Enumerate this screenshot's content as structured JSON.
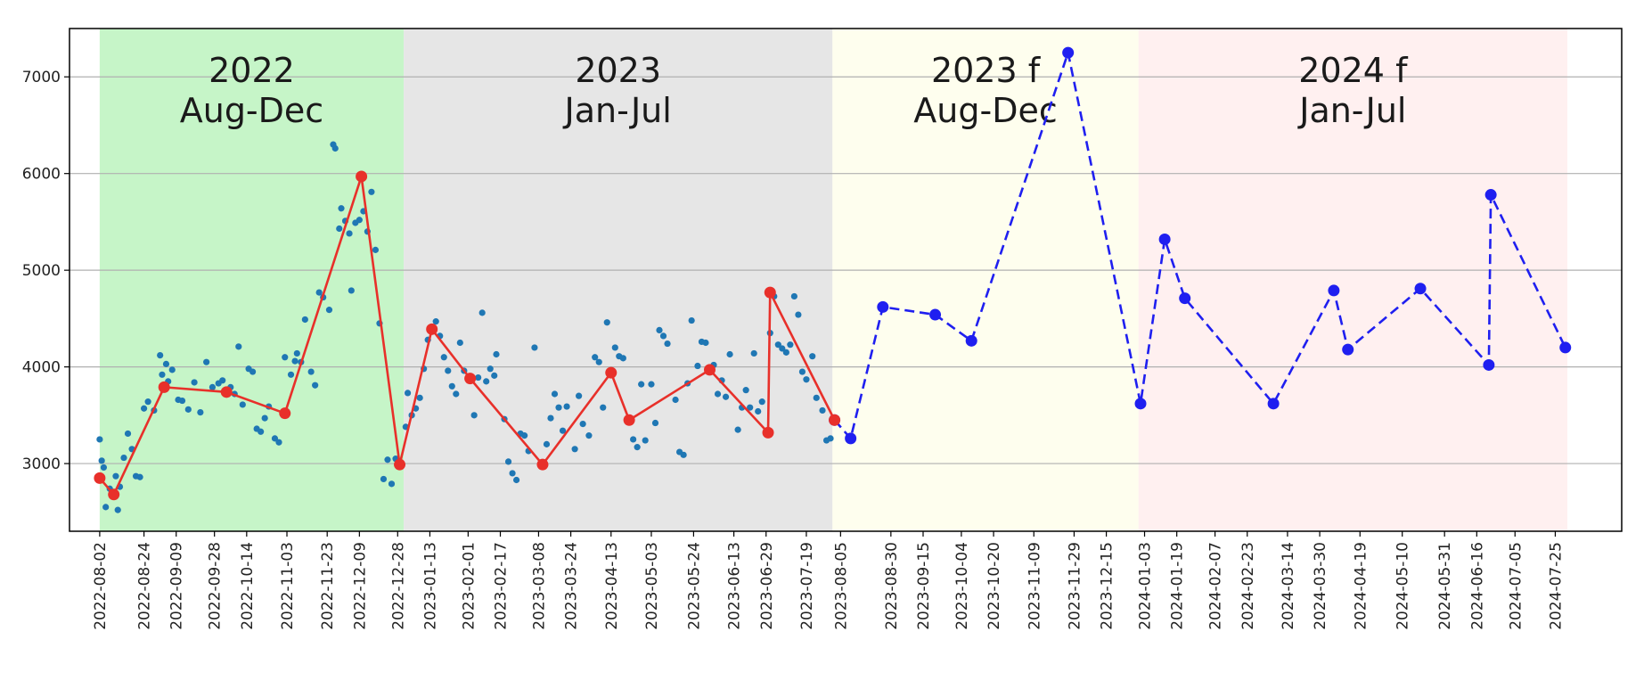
{
  "chart_data": {
    "type": "line",
    "title": "",
    "xlabel": "",
    "ylabel": "",
    "ylim": [
      2300,
      7500
    ],
    "xlim": [
      "2022-07-18",
      "2024-08-27"
    ],
    "y_ticks": [
      3000,
      4000,
      5000,
      6000,
      7000
    ],
    "x_ticks": [
      "2022-08-02",
      "2022-08-24",
      "2022-09-09",
      "2022-09-28",
      "2022-10-14",
      "2022-11-03",
      "2022-11-23",
      "2022-12-09",
      "2022-12-28",
      "2023-01-13",
      "2023-02-01",
      "2023-02-17",
      "2023-03-08",
      "2023-03-24",
      "2023-04-13",
      "2023-05-03",
      "2023-05-24",
      "2023-06-13",
      "2023-06-29",
      "2023-07-19",
      "2023-08-05",
      "2023-08-30",
      "2023-09-15",
      "2023-10-04",
      "2023-10-20",
      "2023-11-09",
      "2023-11-29",
      "2023-12-15",
      "2024-01-03",
      "2024-01-19",
      "2024-02-07",
      "2024-02-23",
      "2024-03-14",
      "2024-03-30",
      "2024-04-19",
      "2024-05-10",
      "2024-05-31",
      "2024-06-16",
      "2024-07-05",
      "2024-07-25"
    ],
    "grid": "horizontal",
    "regions": [
      {
        "start": "2022-08-02",
        "end": "2022-12-31",
        "color": "#c6f5c8",
        "label_line1": "2022",
        "label_line2": "Aug-Dec"
      },
      {
        "start": "2022-12-31",
        "end": "2023-08-01",
        "color": "#e6e6e6",
        "label_line1": "2023",
        "label_line2": "Jan-Jul"
      },
      {
        "start": "2023-08-01",
        "end": "2023-12-31",
        "color": "#fefeee",
        "label_line1": "2023 f",
        "label_line2": "Aug-Dec"
      },
      {
        "start": "2023-12-31",
        "end": "2024-07-31",
        "color": "#fff0f0",
        "label_line1": "2024 f",
        "label_line2": "Jan-Jul"
      }
    ],
    "series": [
      {
        "style": "actual-line",
        "color": "#e8302a",
        "points": [
          [
            "2022-08-02",
            2850
          ],
          [
            "2022-08-09",
            2680
          ],
          [
            "2022-09-03",
            3790
          ],
          [
            "2022-10-04",
            3740
          ],
          [
            "2022-11-02",
            3520
          ],
          [
            "2022-12-10",
            5970
          ],
          [
            "2022-12-29",
            2990
          ],
          [
            "2023-01-14",
            4390
          ],
          [
            "2023-02-02",
            3880
          ],
          [
            "2023-03-10",
            2990
          ],
          [
            "2023-04-13",
            3940
          ],
          [
            "2023-04-22",
            3450
          ],
          [
            "2023-06-01",
            3970
          ],
          [
            "2023-06-30",
            3320
          ],
          [
            "2023-07-01",
            4770
          ],
          [
            "2023-08-02",
            3450
          ]
        ]
      },
      {
        "style": "forecast-line",
        "color": "#1f1ff0",
        "points": [
          [
            "2023-08-02",
            3450
          ],
          [
            "2023-08-10",
            3260
          ],
          [
            "2023-08-26",
            4620
          ],
          [
            "2023-09-21",
            4540
          ],
          [
            "2023-10-09",
            4270
          ],
          [
            "2023-11-26",
            7250
          ],
          [
            "2024-01-01",
            3620
          ],
          [
            "2024-01-13",
            5320
          ],
          [
            "2024-01-23",
            4710
          ],
          [
            "2024-03-07",
            3620
          ],
          [
            "2024-04-06",
            4790
          ],
          [
            "2024-04-13",
            4180
          ],
          [
            "2024-05-19",
            4810
          ],
          [
            "2024-06-22",
            4020
          ],
          [
            "2024-06-23",
            5780
          ],
          [
            "2024-07-30",
            4200
          ]
        ]
      },
      {
        "style": "daily-scatter",
        "color": "#1f77b4",
        "points": [
          [
            "2022-08-02",
            3250
          ],
          [
            "2022-08-03",
            3030
          ],
          [
            "2022-08-04",
            2960
          ],
          [
            "2022-08-05",
            2550
          ],
          [
            "2022-08-07",
            2740
          ],
          [
            "2022-08-08",
            2680
          ],
          [
            "2022-08-10",
            2870
          ],
          [
            "2022-08-11",
            2520
          ],
          [
            "2022-08-12",
            2760
          ],
          [
            "2022-08-14",
            3060
          ],
          [
            "2022-08-16",
            3310
          ],
          [
            "2022-08-18",
            3150
          ],
          [
            "2022-08-20",
            2870
          ],
          [
            "2022-08-22",
            2860
          ],
          [
            "2022-08-24",
            3570
          ],
          [
            "2022-08-26",
            3640
          ],
          [
            "2022-08-29",
            3550
          ],
          [
            "2022-09-01",
            4120
          ],
          [
            "2022-09-02",
            3920
          ],
          [
            "2022-09-04",
            4030
          ],
          [
            "2022-09-05",
            3850
          ],
          [
            "2022-09-07",
            3970
          ],
          [
            "2022-09-10",
            3660
          ],
          [
            "2022-09-12",
            3650
          ],
          [
            "2022-09-15",
            3560
          ],
          [
            "2022-09-18",
            3840
          ],
          [
            "2022-09-21",
            3530
          ],
          [
            "2022-09-24",
            4050
          ],
          [
            "2022-09-27",
            3790
          ],
          [
            "2022-09-30",
            3830
          ],
          [
            "2022-10-02",
            3860
          ],
          [
            "2022-10-06",
            3790
          ],
          [
            "2022-10-08",
            3720
          ],
          [
            "2022-10-10",
            4210
          ],
          [
            "2022-10-12",
            3610
          ],
          [
            "2022-10-15",
            3980
          ],
          [
            "2022-10-17",
            3950
          ],
          [
            "2022-10-19",
            3360
          ],
          [
            "2022-10-21",
            3330
          ],
          [
            "2022-10-23",
            3470
          ],
          [
            "2022-10-25",
            3590
          ],
          [
            "2022-10-28",
            3260
          ],
          [
            "2022-10-30",
            3220
          ],
          [
            "2022-11-02",
            4100
          ],
          [
            "2022-11-05",
            3920
          ],
          [
            "2022-11-07",
            4060
          ],
          [
            "2022-11-08",
            4140
          ],
          [
            "2022-11-10",
            4050
          ],
          [
            "2022-11-12",
            4490
          ],
          [
            "2022-11-15",
            3950
          ],
          [
            "2022-11-17",
            3810
          ],
          [
            "2022-11-19",
            4770
          ],
          [
            "2022-11-21",
            4720
          ],
          [
            "2022-11-24",
            4590
          ],
          [
            "2022-11-26",
            6300
          ],
          [
            "2022-11-27",
            6260
          ],
          [
            "2022-11-29",
            5430
          ],
          [
            "2022-11-30",
            5640
          ],
          [
            "2022-12-02",
            5510
          ],
          [
            "2022-12-04",
            5380
          ],
          [
            "2022-12-05",
            4790
          ],
          [
            "2022-12-07",
            5490
          ],
          [
            "2022-12-09",
            5520
          ],
          [
            "2022-12-11",
            5610
          ],
          [
            "2022-12-13",
            5400
          ],
          [
            "2022-12-15",
            5810
          ],
          [
            "2022-12-17",
            5210
          ],
          [
            "2022-12-19",
            4450
          ],
          [
            "2022-12-21",
            2840
          ],
          [
            "2022-12-23",
            3040
          ],
          [
            "2022-12-25",
            2790
          ],
          [
            "2022-12-27",
            3050
          ],
          [
            "2023-01-01",
            3380
          ],
          [
            "2023-01-02",
            3730
          ],
          [
            "2023-01-04",
            3500
          ],
          [
            "2023-01-06",
            3570
          ],
          [
            "2023-01-08",
            3680
          ],
          [
            "2023-01-10",
            3980
          ],
          [
            "2023-01-12",
            4280
          ],
          [
            "2023-01-16",
            4470
          ],
          [
            "2023-01-18",
            4320
          ],
          [
            "2023-01-20",
            4100
          ],
          [
            "2023-01-22",
            3960
          ],
          [
            "2023-01-24",
            3800
          ],
          [
            "2023-01-26",
            3720
          ],
          [
            "2023-01-28",
            4250
          ],
          [
            "2023-01-30",
            3960
          ],
          [
            "2023-02-04",
            3500
          ],
          [
            "2023-02-06",
            3890
          ],
          [
            "2023-02-08",
            4560
          ],
          [
            "2023-02-10",
            3850
          ],
          [
            "2023-02-12",
            3980
          ],
          [
            "2023-02-14",
            3910
          ],
          [
            "2023-02-15",
            4130
          ],
          [
            "2023-02-19",
            3460
          ],
          [
            "2023-02-21",
            3020
          ],
          [
            "2023-02-23",
            2900
          ],
          [
            "2023-02-25",
            2830
          ],
          [
            "2023-02-27",
            3310
          ],
          [
            "2023-03-01",
            3290
          ],
          [
            "2023-03-03",
            3130
          ],
          [
            "2023-03-06",
            4200
          ],
          [
            "2023-03-12",
            3200
          ],
          [
            "2023-03-14",
            3470
          ],
          [
            "2023-03-16",
            3720
          ],
          [
            "2023-03-18",
            3580
          ],
          [
            "2023-03-20",
            3340
          ],
          [
            "2023-03-22",
            3590
          ],
          [
            "2023-03-26",
            3150
          ],
          [
            "2023-03-28",
            3700
          ],
          [
            "2023-03-30",
            3410
          ],
          [
            "2023-04-02",
            3290
          ],
          [
            "2023-04-05",
            4100
          ],
          [
            "2023-04-07",
            4050
          ],
          [
            "2023-04-09",
            3580
          ],
          [
            "2023-04-11",
            4460
          ],
          [
            "2023-04-15",
            4200
          ],
          [
            "2023-04-17",
            4110
          ],
          [
            "2023-04-19",
            4090
          ],
          [
            "2023-04-24",
            3250
          ],
          [
            "2023-04-26",
            3170
          ],
          [
            "2023-04-28",
            3820
          ],
          [
            "2023-04-30",
            3240
          ],
          [
            "2023-05-03",
            3820
          ],
          [
            "2023-05-05",
            3420
          ],
          [
            "2023-05-07",
            4380
          ],
          [
            "2023-05-09",
            4320
          ],
          [
            "2023-05-11",
            4240
          ],
          [
            "2023-05-15",
            3660
          ],
          [
            "2023-05-17",
            3120
          ],
          [
            "2023-05-19",
            3090
          ],
          [
            "2023-05-21",
            3830
          ],
          [
            "2023-05-23",
            4480
          ],
          [
            "2023-05-26",
            4010
          ],
          [
            "2023-05-28",
            4260
          ],
          [
            "2023-05-30",
            4250
          ],
          [
            "2023-06-03",
            4020
          ],
          [
            "2023-06-05",
            3720
          ],
          [
            "2023-06-07",
            3860
          ],
          [
            "2023-06-09",
            3690
          ],
          [
            "2023-06-11",
            4130
          ],
          [
            "2023-06-15",
            3350
          ],
          [
            "2023-06-17",
            3580
          ],
          [
            "2023-06-19",
            3760
          ],
          [
            "2023-06-21",
            3580
          ],
          [
            "2023-06-23",
            4140
          ],
          [
            "2023-06-25",
            3540
          ],
          [
            "2023-06-27",
            3640
          ],
          [
            "2023-07-01",
            4350
          ],
          [
            "2023-07-03",
            4730
          ],
          [
            "2023-07-05",
            4230
          ],
          [
            "2023-07-07",
            4190
          ],
          [
            "2023-07-09",
            4150
          ],
          [
            "2023-07-11",
            4230
          ],
          [
            "2023-07-13",
            4730
          ],
          [
            "2023-07-15",
            4540
          ],
          [
            "2023-07-17",
            3950
          ],
          [
            "2023-07-19",
            3870
          ],
          [
            "2023-07-22",
            4110
          ],
          [
            "2023-07-24",
            3680
          ],
          [
            "2023-07-27",
            3550
          ],
          [
            "2023-07-29",
            3240
          ],
          [
            "2023-07-31",
            3260
          ]
        ]
      }
    ]
  }
}
